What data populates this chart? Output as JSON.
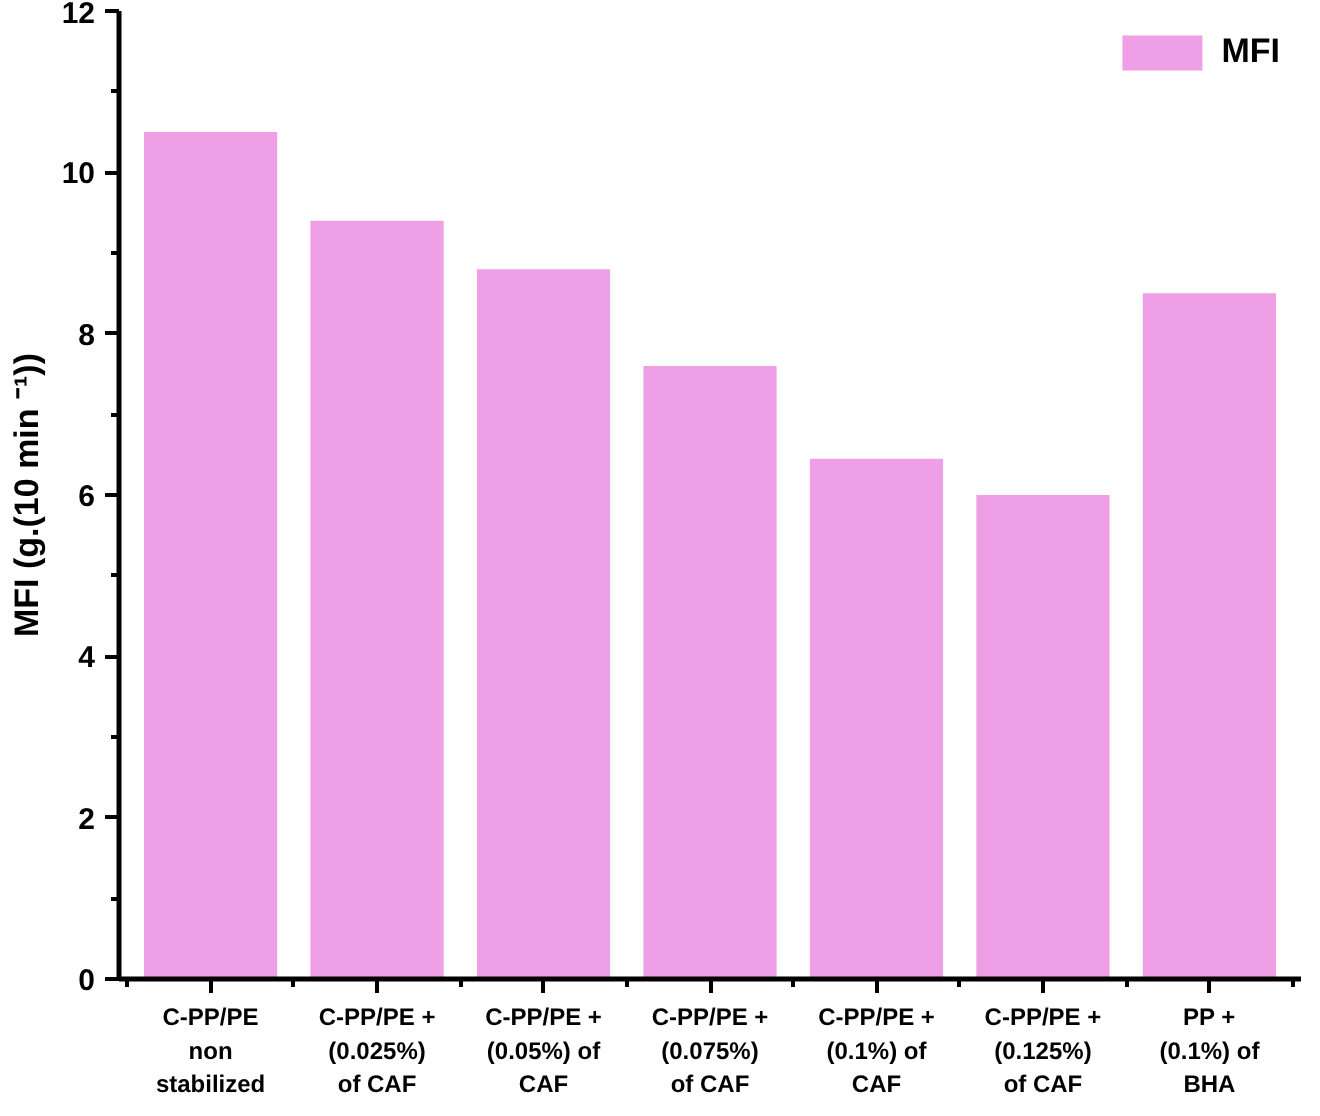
{
  "chart_data": {
    "type": "bar",
    "ylabel": "MFI (g.(10 min ⁻¹))",
    "categories": [
      "C-PP/PE non stabilized",
      "C-PP/PE + (0.025%) of CAF",
      "C-PP/PE + (0.05%) of CAF",
      "C-PP/PE + (0.075%) of CAF",
      "C-PP/PE + (0.1%) of CAF",
      "C-PP/PE + (0.125%) of CAF",
      "PP + (0.1%) of BHA"
    ],
    "series": [
      {
        "name": "MFI",
        "color": "#ee9fe6",
        "values": [
          10.5,
          9.4,
          8.8,
          7.6,
          6.45,
          6.0,
          8.5
        ]
      }
    ],
    "ylim": [
      0,
      12
    ],
    "yticks": [
      0,
      2,
      4,
      6,
      8,
      10,
      12
    ],
    "grid": false,
    "legend": "top right"
  }
}
